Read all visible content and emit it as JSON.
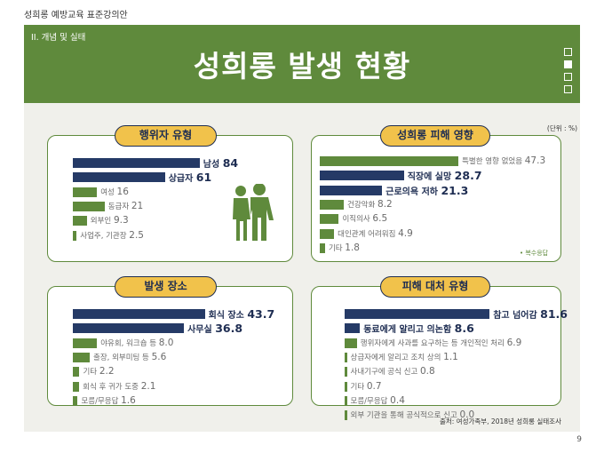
{
  "top_caption": "성희롱 예방교육 표준강의안",
  "header": {
    "section": "II. 개념 및 실태",
    "title": "성희롱 발생 현황"
  },
  "unit": "(단위 : %)",
  "note": "• 복수응답",
  "source": "출처: 여성가족부, 2018년 성희롱 실태조사",
  "page_number": "9",
  "colors": {
    "navy": "#253a66",
    "green": "#5f8a3c",
    "pill": "#f1c24b",
    "panel_border": "#5f8a3c"
  },
  "chart_data": [
    {
      "type": "bar",
      "title": "행위자 유형",
      "categories": [
        "남성",
        "상급자",
        "여성",
        "동급자",
        "외부인",
        "사업주, 기관장"
      ],
      "values": [
        84,
        61,
        16,
        21,
        9.3,
        2.5
      ],
      "highlight": [
        true,
        true,
        false,
        false,
        false,
        false
      ]
    },
    {
      "type": "bar",
      "title": "성희롱 피해 영향",
      "categories": [
        "특별한 영향 없었음",
        "직장에 실망",
        "근로의욕 저하",
        "건강악화",
        "이직의사",
        "대인관계 어려워짐",
        "기타"
      ],
      "values": [
        47.3,
        28.7,
        21.3,
        8.2,
        6.5,
        4.9,
        1.8
      ],
      "highlight": [
        false,
        true,
        true,
        false,
        false,
        false,
        false
      ]
    },
    {
      "type": "bar",
      "title": "발생 장소",
      "categories": [
        "회식 장소",
        "사무실",
        "야유회, 워크숍 등",
        "출장, 외부미팅 등",
        "기타",
        "회식 후 귀가 도중",
        "모름/무응답"
      ],
      "values": [
        43.7,
        36.8,
        8.0,
        5.6,
        2.2,
        2.1,
        1.6
      ],
      "highlight": [
        true,
        true,
        false,
        false,
        false,
        false,
        false
      ]
    },
    {
      "type": "bar",
      "title": "피해 대처 유형",
      "categories": [
        "참고 넘어감",
        "동료에게 알리고 의논함",
        "행위자에게 사과를 요구하는 등 개인적인 처리",
        "상급자에게 알리고 조치 상의",
        "사내기구에 공식 신고",
        "기타",
        "모름/무응답",
        "외부 기관을 통해 공식적으로 신고"
      ],
      "values": [
        81.6,
        8.6,
        6.9,
        1.1,
        0.8,
        0.7,
        0.4,
        0.0
      ],
      "highlight": [
        true,
        true,
        false,
        false,
        false,
        false,
        false,
        false
      ]
    }
  ]
}
